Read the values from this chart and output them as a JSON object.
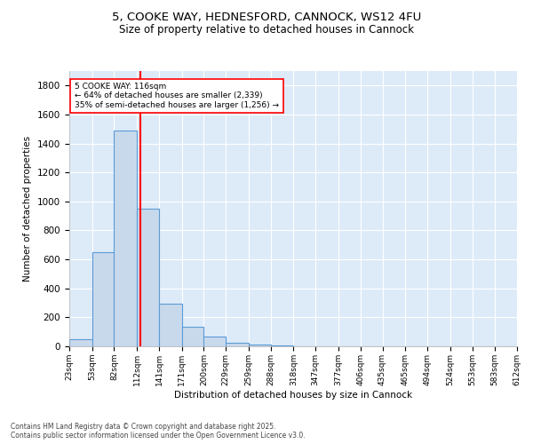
{
  "title_line1": "5, COOKE WAY, HEDNESFORD, CANNOCK, WS12 4FU",
  "title_line2": "Size of property relative to detached houses in Cannock",
  "xlabel": "Distribution of detached houses by size in Cannock",
  "ylabel": "Number of detached properties",
  "bar_color": "#c9d9ec",
  "bar_edge_color": "#5b9bd5",
  "red_line_x": 116,
  "annotation_line1": "5 COOKE WAY: 116sqm",
  "annotation_line2": "← 64% of detached houses are smaller (2,339)",
  "annotation_line3": "35% of semi-detached houses are larger (1,256) →",
  "footer_line1": "Contains HM Land Registry data © Crown copyright and database right 2025.",
  "footer_line2": "Contains public sector information licensed under the Open Government Licence v3.0.",
  "bin_edges": [
    23,
    53,
    82,
    112,
    141,
    171,
    200,
    229,
    259,
    288,
    318,
    347,
    377,
    406,
    435,
    465,
    494,
    524,
    553,
    583,
    612
  ],
  "bin_counts": [
    47,
    650,
    1490,
    950,
    295,
    135,
    65,
    22,
    10,
    5,
    3,
    2,
    1,
    0,
    0,
    0,
    0,
    0,
    0,
    0
  ],
  "background_color": "#ffffff",
  "plot_bg_color": "#ddeaf8",
  "grid_color": "#ffffff",
  "ylim": [
    0,
    1900
  ],
  "yticks": [
    0,
    200,
    400,
    600,
    800,
    1000,
    1200,
    1400,
    1600,
    1800
  ]
}
